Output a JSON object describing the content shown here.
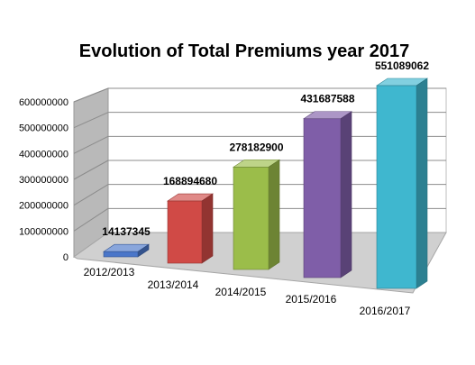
{
  "chart_data": {
    "type": "bar",
    "title": "Evolution of Total Premiums year 2017",
    "categories": [
      "2012/2013",
      "2013/2014",
      "2014/2015",
      "2015/2016",
      "2016/2017"
    ],
    "values": [
      14137345,
      168894680,
      278182900,
      431687588,
      551089062
    ],
    "data_labels": [
      "14137345",
      "168894680",
      "278182900",
      "431687588",
      "551089062"
    ],
    "y_ticks": [
      "0",
      "100000000",
      "200000000",
      "300000000",
      "400000000",
      "500000000",
      "600000000"
    ],
    "ylim": [
      0,
      600000000
    ],
    "grid": true,
    "legend": "none",
    "colors": [
      "#4a76c9",
      "#d04a46",
      "#9bbd4a",
      "#7f5ea8",
      "#3fb7cf"
    ]
  }
}
